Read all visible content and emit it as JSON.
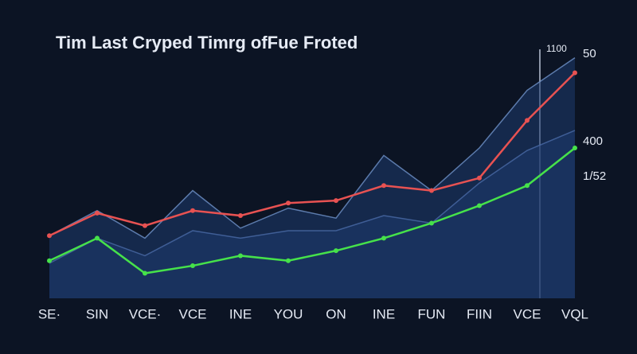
{
  "chart_data": {
    "type": "line",
    "title": "Tim Last Cryped Timrg ofFue Froted",
    "categories": [
      "SE·",
      "SIN",
      "VCE·",
      "VCE",
      "INE",
      "YOU",
      "ON",
      "INE",
      "FUN",
      "FIIN",
      "VCE",
      "VQL"
    ],
    "series": [
      {
        "name": "upper",
        "color": "#6f92c9",
        "area": true,
        "markers": false,
        "values": [
          25,
          35,
          24,
          43,
          28,
          36,
          32,
          57,
          43,
          60,
          83,
          96
        ]
      },
      {
        "name": "lower",
        "color": "#4a6aa6",
        "area": true,
        "markers": false,
        "values": [
          14,
          24,
          17,
          27,
          24,
          27,
          27,
          33,
          30,
          46,
          59,
          67
        ]
      },
      {
        "name": "red",
        "color": "#e85252",
        "area": false,
        "markers": true,
        "values": [
          25,
          34,
          29,
          35,
          33,
          38,
          39,
          45,
          43,
          48,
          71,
          90
        ]
      },
      {
        "name": "green",
        "color": "#46e24a",
        "area": false,
        "markers": true,
        "values": [
          15,
          24,
          10,
          13,
          17,
          15,
          19,
          24,
          30,
          37,
          45,
          60
        ]
      }
    ],
    "ylim": [
      0,
      100
    ],
    "annotations": [
      {
        "text": "1100"
      },
      {
        "text": "50"
      },
      {
        "text": "400"
      },
      {
        "text": "1/52"
      }
    ]
  }
}
